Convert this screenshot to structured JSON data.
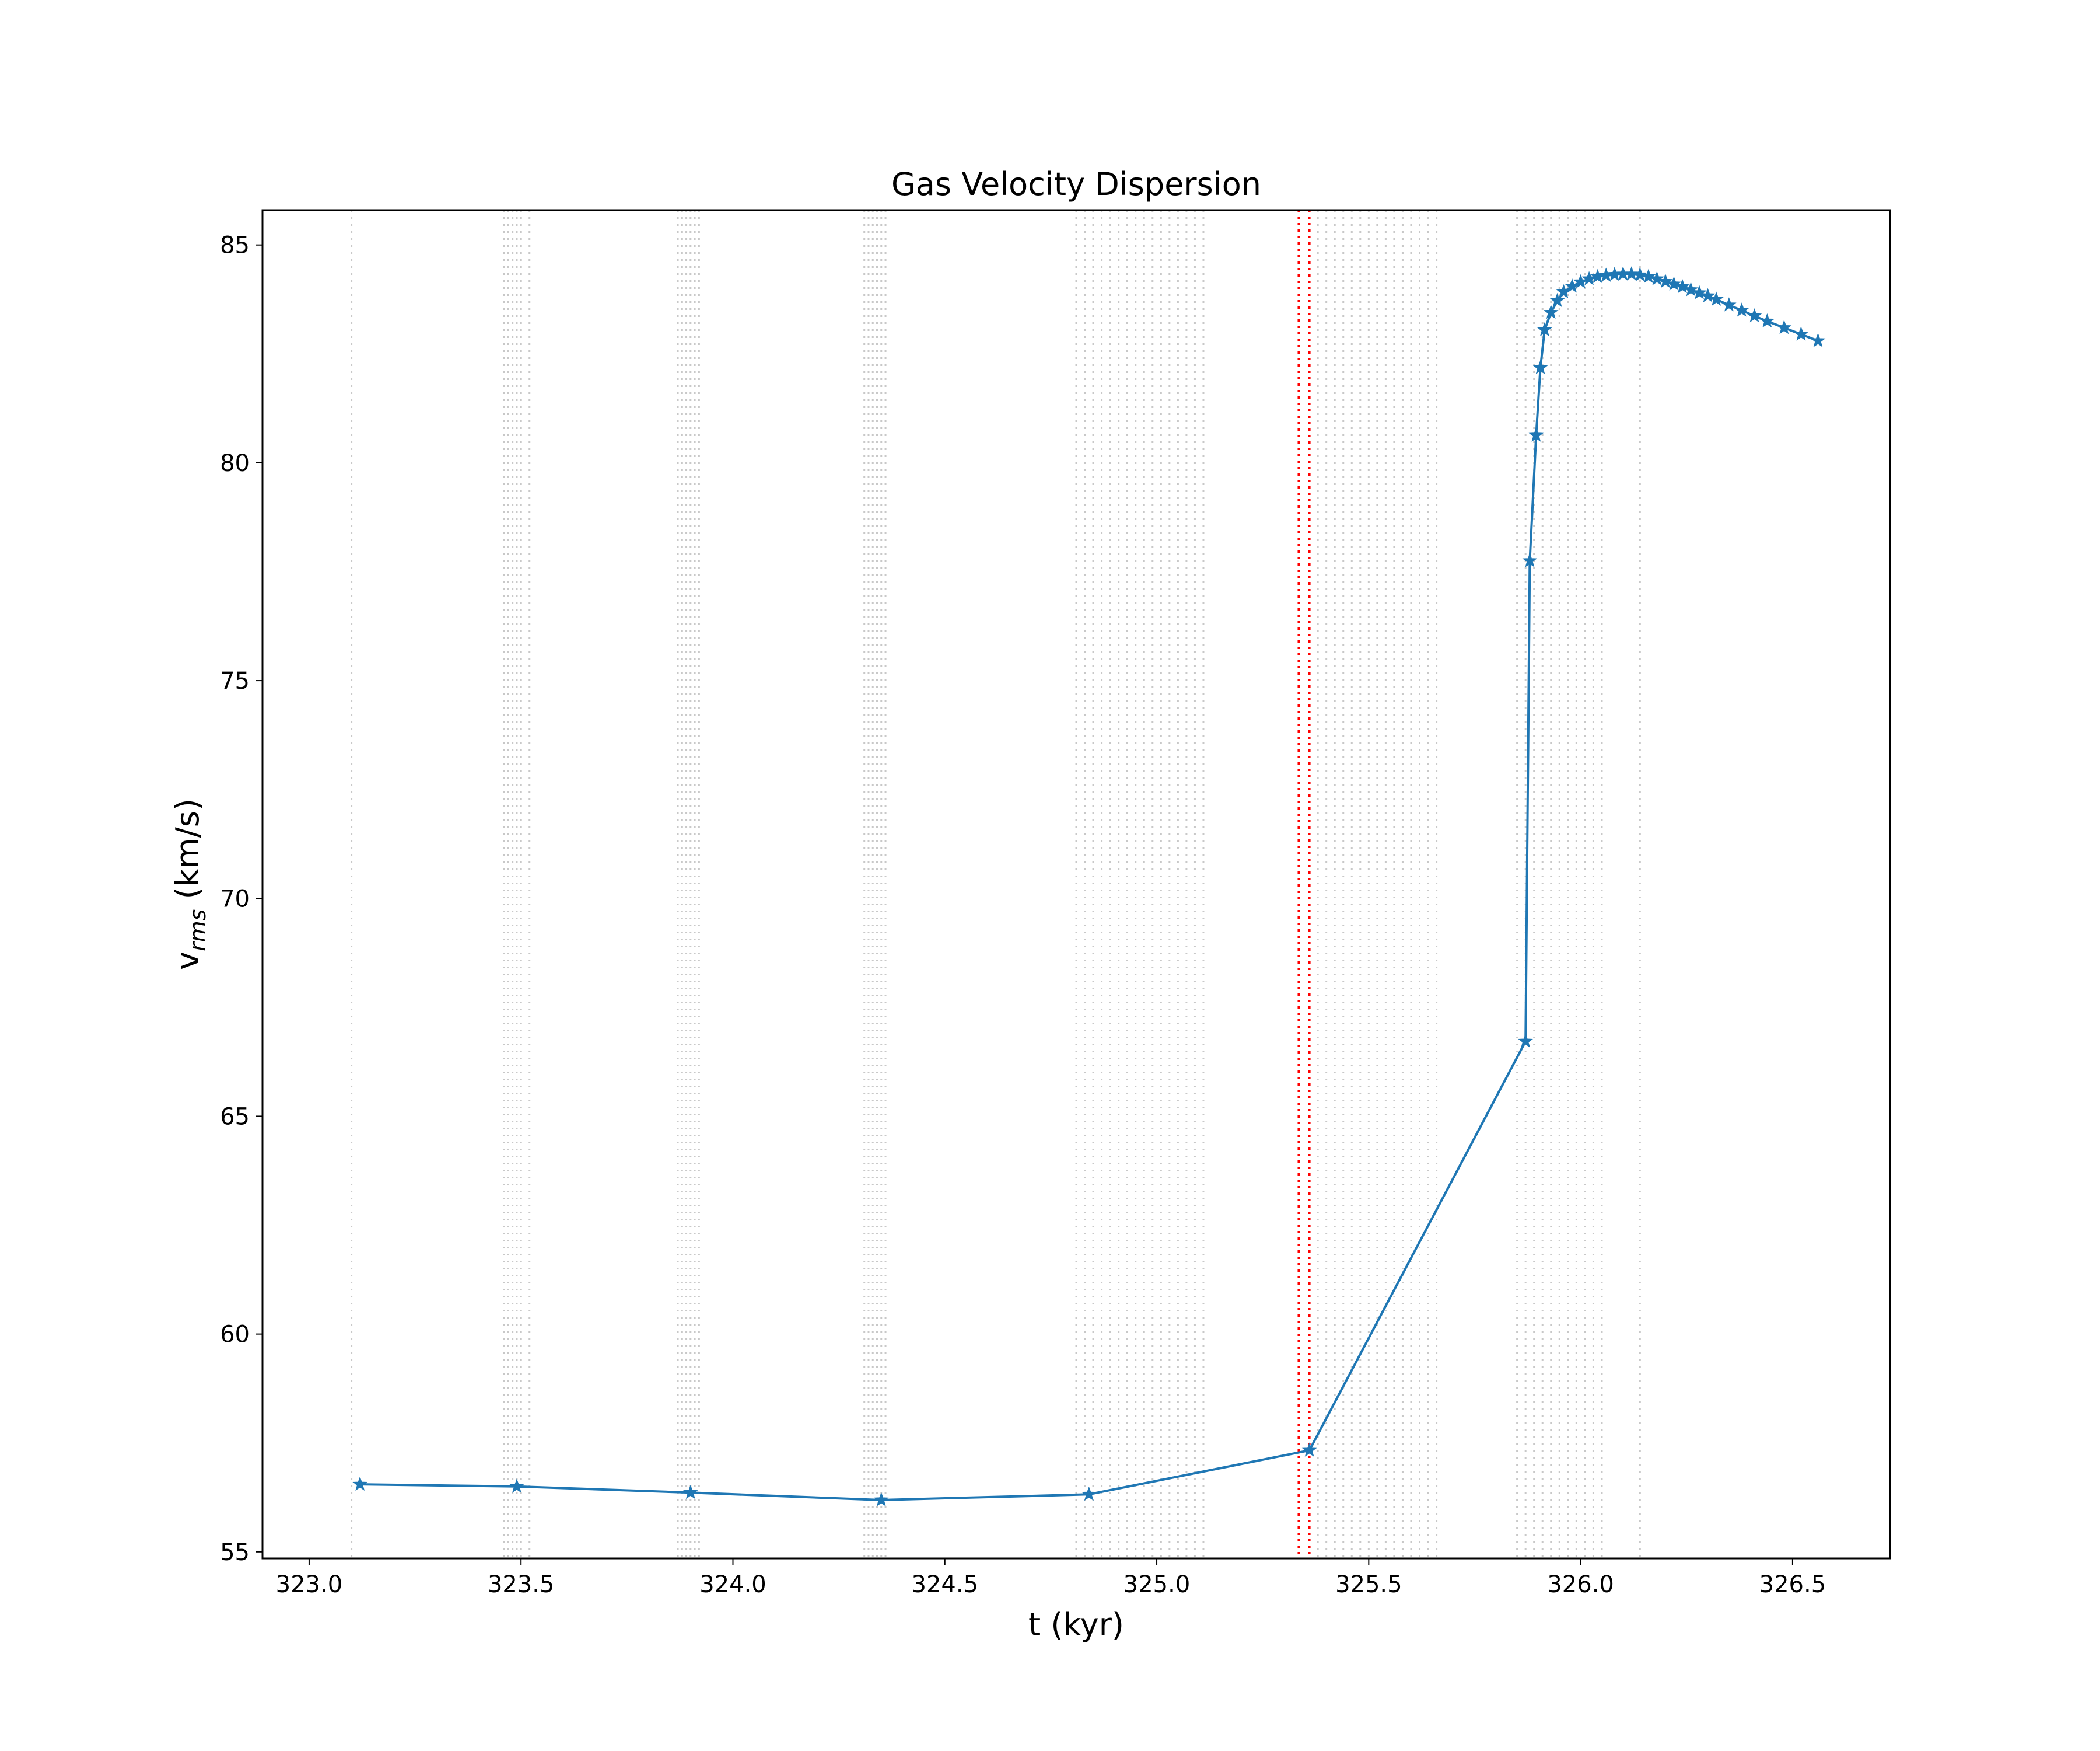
{
  "chart_data": {
    "type": "line",
    "title": "Gas Velocity Dispersion",
    "xlabel": "t (kyr)",
    "ylabel": "v",
    "ylabel_sub": "rms",
    "ylabel_unit": " (km/s)",
    "xlim": [
      322.89,
      326.73
    ],
    "ylim": [
      54.85,
      85.8
    ],
    "xticks": [
      323.0,
      323.5,
      324.0,
      324.5,
      325.0,
      325.5,
      326.0,
      326.5
    ],
    "xtick_labels": [
      "323.0",
      "323.5",
      "324.0",
      "324.5",
      "325.0",
      "325.5",
      "326.0",
      "326.5"
    ],
    "yticks": [
      55,
      60,
      65,
      70,
      75,
      80,
      85
    ],
    "ytick_labels": [
      "55",
      "60",
      "65",
      "70",
      "75",
      "80",
      "85"
    ],
    "grid": false,
    "marker": "star",
    "series": [
      {
        "color": "#1f77b4",
        "x": [
          323.12,
          323.49,
          323.9,
          324.35,
          324.84,
          325.36,
          325.87,
          325.88,
          325.895,
          325.905,
          325.915,
          325.93,
          325.945,
          325.96,
          325.98,
          326.0,
          326.02,
          326.04,
          326.06,
          326.08,
          326.1,
          326.12,
          326.14,
          326.16,
          326.18,
          326.2,
          326.22,
          326.24,
          326.26,
          326.28,
          326.3,
          326.32,
          326.35,
          326.38,
          326.41,
          326.44,
          326.48,
          326.52,
          326.56
        ],
        "y": [
          56.55,
          56.5,
          56.36,
          56.19,
          56.32,
          57.33,
          66.72,
          77.75,
          80.63,
          82.18,
          83.05,
          83.45,
          83.72,
          83.92,
          84.05,
          84.15,
          84.22,
          84.27,
          84.3,
          84.32,
          84.33,
          84.33,
          84.31,
          84.27,
          84.22,
          84.16,
          84.1,
          84.04,
          83.97,
          83.9,
          83.83,
          83.75,
          83.62,
          83.5,
          83.37,
          83.25,
          83.1,
          82.95,
          82.8
        ]
      }
    ],
    "reference_lines": {
      "color": "#ff0000",
      "x": [
        325.335,
        325.36
      ]
    },
    "snapshot_lines": {
      "color": "#c8c8c8",
      "x": [
        323.1,
        323.46,
        323.47,
        323.48,
        323.49,
        323.5,
        323.52,
        323.87,
        323.88,
        323.89,
        323.9,
        323.91,
        323.92,
        324.31,
        324.32,
        324.33,
        324.34,
        324.35,
        324.36,
        324.81,
        324.83,
        324.85,
        324.87,
        324.89,
        324.91,
        324.93,
        324.95,
        324.97,
        324.99,
        325.01,
        325.03,
        325.05,
        325.07,
        325.09,
        325.11,
        325.38,
        325.4,
        325.42,
        325.44,
        325.46,
        325.48,
        325.5,
        325.52,
        325.54,
        325.56,
        325.58,
        325.6,
        325.62,
        325.64,
        325.66,
        325.85,
        325.87,
        325.89,
        325.91,
        325.93,
        325.95,
        325.97,
        325.99,
        326.01,
        326.03,
        326.05,
        326.14
      ]
    }
  }
}
